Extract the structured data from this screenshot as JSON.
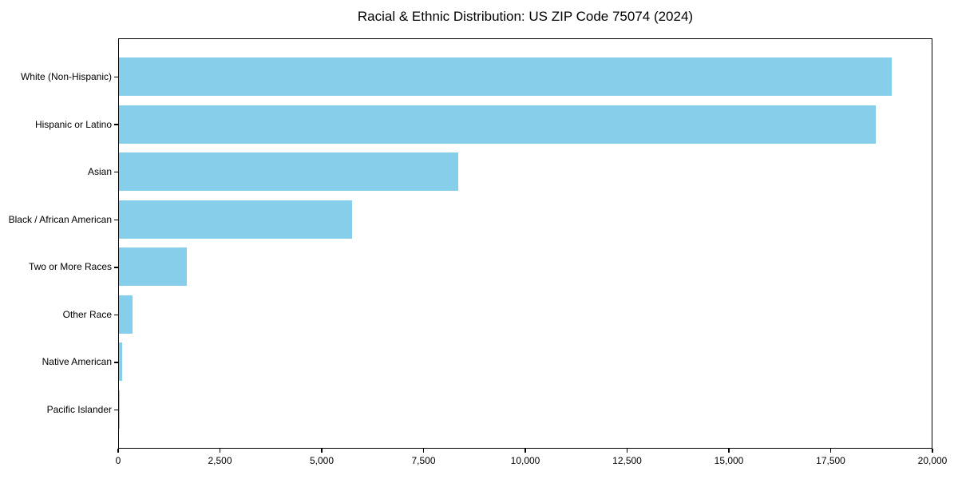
{
  "chart_data": {
    "type": "bar",
    "orientation": "horizontal",
    "title": "Racial & Ethnic Distribution: US ZIP Code 75074 (2024)",
    "categories": [
      "White (Non-Hispanic)",
      "Hispanic or Latino",
      "Asian",
      "Black / African American",
      "Two or More Races",
      "Other Race",
      "Native American",
      "Pacific Islander"
    ],
    "values": [
      19040,
      18650,
      8350,
      5740,
      1670,
      330,
      70,
      15
    ],
    "xlabel": "",
    "ylabel": "",
    "xlim": [
      0,
      20000
    ],
    "xticks": [
      0,
      2500,
      5000,
      7500,
      10000,
      12500,
      15000,
      17500,
      20000
    ],
    "xtick_labels": [
      "0",
      "2,500",
      "5,000",
      "7,500",
      "10,000",
      "12,500",
      "15,000",
      "17,500",
      "20,000"
    ],
    "grid": false,
    "legend": false,
    "colors": {
      "bar": "#87CEEB",
      "spine": "#000000",
      "text": "#000000",
      "background": "#ffffff"
    }
  }
}
